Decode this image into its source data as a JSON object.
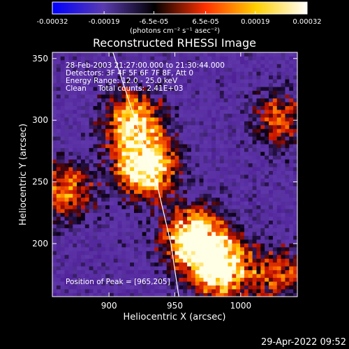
{
  "colorbar": {
    "tick_labels": [
      "-0.00032",
      "-0.00019",
      "-6.5e-05",
      "6.5e-05",
      "0.00019",
      "0.00032"
    ],
    "ticks": [
      -0.00032,
      -0.00019,
      -6.5e-05,
      6.5e-05,
      0.00019,
      0.00032
    ],
    "units": "(photons cm⁻² s⁻¹ asec⁻²)",
    "range": [
      -0.00032,
      0.00032
    ],
    "colors": [
      "#0000ff",
      "#5a3bb0",
      "#000000",
      "#ff3000",
      "#ffd000",
      "#ffffff"
    ]
  },
  "chart_data": {
    "type": "heatmap",
    "title": "Reconstructed RHESSI Image",
    "xlabel": "Heliocentric X (arcsec)",
    "ylabel": "Heliocentric Y (arcsec)",
    "xlim": [
      857,
      1043
    ],
    "ylim": [
      157,
      355
    ],
    "x_ticks": [
      900,
      950,
      1000
    ],
    "y_ticks": [
      200,
      250,
      300,
      350
    ],
    "annotations": [
      "28-Feb-2003 21:27:00.000 to 21:30:44.000",
      "Detectors: 3F 4F 5F 6F 7F 8F, Att 0",
      "Energy Range: 12.0 - 25.0 keV",
      "Clean     Total counts: 2.41E+03"
    ],
    "peak_label": "Position of Peak = [965,205]",
    "peak": [
      965,
      205
    ],
    "bright_sources": [
      {
        "x": 928,
        "y": 262,
        "intensity": 1.0
      },
      {
        "x": 918,
        "y": 300,
        "intensity": 0.75
      },
      {
        "x": 965,
        "y": 205,
        "intensity": 1.0
      },
      {
        "x": 985,
        "y": 180,
        "intensity": 0.95
      },
      {
        "x": 868,
        "y": 243,
        "intensity": 0.55
      },
      {
        "x": 1030,
        "y": 175,
        "intensity": 0.45
      },
      {
        "x": 1030,
        "y": 300,
        "intensity": 0.45
      }
    ],
    "limb_curve": [
      [
        903,
        355
      ],
      [
        920,
        300
      ],
      [
        936,
        250
      ],
      [
        947,
        200
      ],
      [
        953,
        157
      ]
    ]
  },
  "timestamp": "29-Apr-2022 09:52"
}
